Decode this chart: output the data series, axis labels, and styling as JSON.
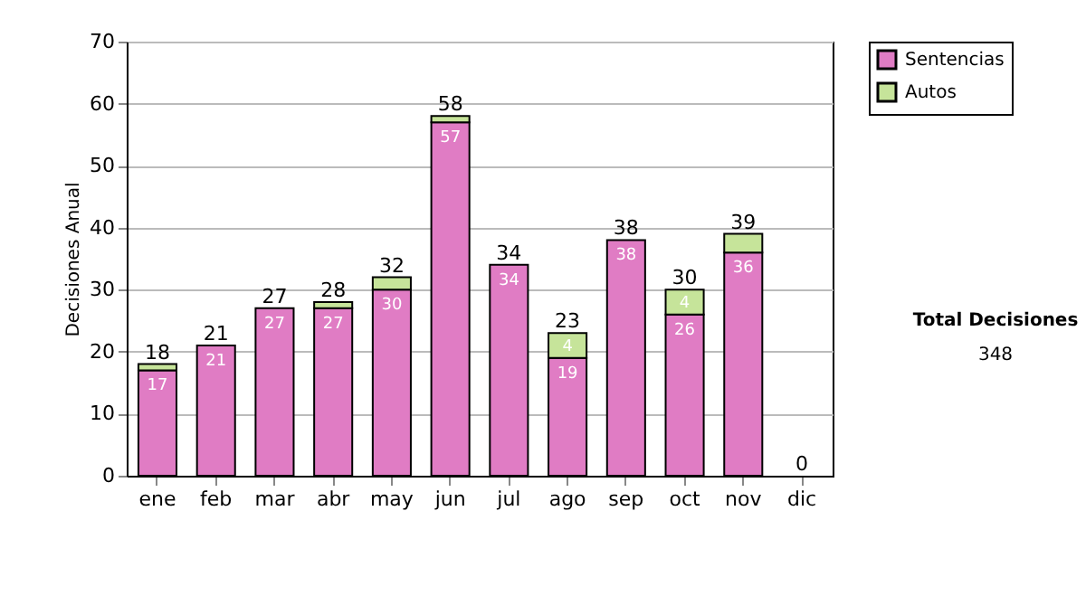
{
  "chart_data": {
    "type": "bar",
    "stacked": true,
    "ylabel": "Decisiones Anual",
    "categories": [
      "ene",
      "feb",
      "mar",
      "abr",
      "may",
      "jun",
      "jul",
      "ago",
      "sep",
      "oct",
      "nov",
      "dic"
    ],
    "series": [
      {
        "name": "Sentencias",
        "color": "#e07cc4",
        "values": [
          17,
          21,
          27,
          27,
          30,
          57,
          34,
          19,
          38,
          26,
          36,
          0
        ],
        "value_labels": [
          "17",
          "21",
          "27",
          "27",
          "30",
          "57",
          "34",
          "19",
          "38",
          "26",
          "36",
          null
        ]
      },
      {
        "name": "Autos",
        "color": "#c6e49a",
        "values": [
          1,
          0,
          0,
          1,
          2,
          1,
          0,
          4,
          0,
          4,
          3,
          0
        ],
        "value_labels": [
          null,
          null,
          null,
          null,
          null,
          null,
          null,
          "4",
          null,
          "4",
          null,
          null
        ]
      }
    ],
    "totals": [
      "18",
      "21",
      "27",
      "28",
      "32",
      "58",
      "34",
      "23",
      "38",
      "30",
      "39",
      "0"
    ],
    "ylim": [
      0,
      70
    ],
    "yticks": [
      0,
      10,
      20,
      30,
      40,
      50,
      60,
      70
    ],
    "grid": "y",
    "legend": "right",
    "annotations": [
      "Total Decisiones",
      "348"
    ]
  }
}
